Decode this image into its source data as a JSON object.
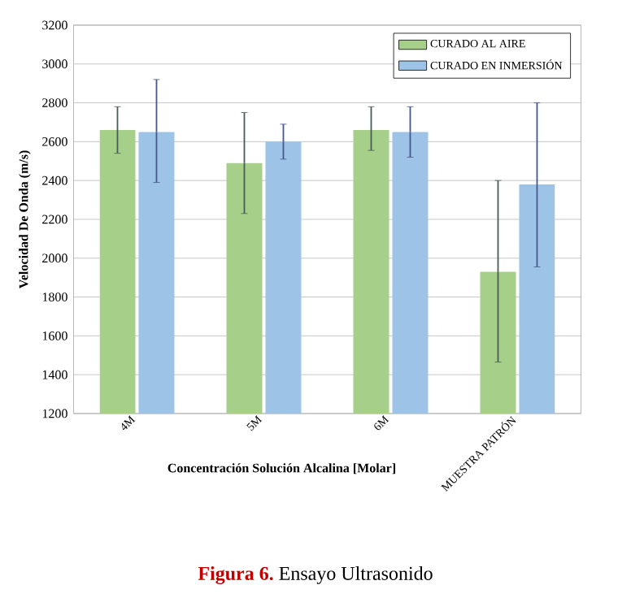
{
  "chart_data": {
    "type": "bar",
    "xlabel": "Concentración Solución Alcalina [Molar]",
    "ylabel": "Velocidad De Onda (m/s)",
    "categories": [
      "4M",
      "5M",
      "6M",
      "MUESTRA PATRÓN"
    ],
    "series": [
      {
        "name": "CURADO AL AIRE",
        "color": "#a6cf8a",
        "values": [
          2660,
          2490,
          2660,
          1930
        ],
        "errors": [
          [
            2540,
            2780
          ],
          [
            2230,
            2750
          ],
          [
            2555,
            2780
          ],
          [
            1465,
            2400
          ]
        ]
      },
      {
        "name": "CURADO EN INMERSIÓN",
        "color": "#9dc3e6",
        "values": [
          2650,
          2600,
          2650,
          2380
        ],
        "errors": [
          [
            2390,
            2920
          ],
          [
            2510,
            2690
          ],
          [
            2520,
            2780
          ],
          [
            1955,
            2800
          ]
        ]
      }
    ],
    "ylim": [
      1200,
      3200
    ],
    "yticks": [
      1200,
      1400,
      1600,
      1800,
      2000,
      2200,
      2400,
      2600,
      2800,
      3000,
      3200
    ],
    "grid": "y",
    "legend": "top right",
    "annotations": [
      "Figura 6.",
      "Ensayo Ultrasonido"
    ]
  }
}
